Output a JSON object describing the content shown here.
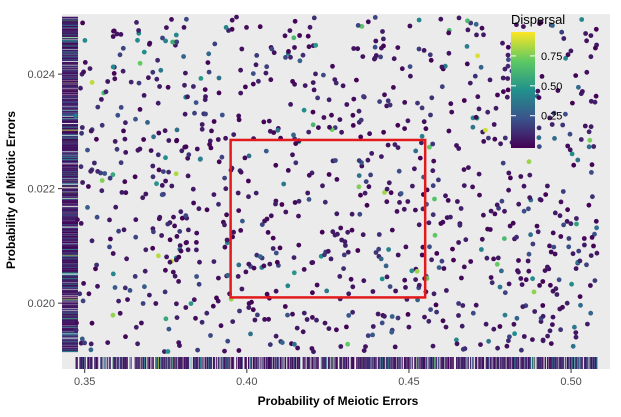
{
  "chart_data": {
    "type": "scatter",
    "title": "",
    "xlabel": "Probability of Meiotic Errors",
    "ylabel": "Probability of Mitotic Errors",
    "xlim": [
      0.343,
      0.512
    ],
    "ylim": [
      0.01885,
      0.02505
    ],
    "xticks": [
      0.35,
      0.4,
      0.45,
      0.5
    ],
    "xtick_labels": [
      "0.35",
      "0.40",
      "0.45",
      "0.50"
    ],
    "yticks": [
      0.02,
      0.022,
      0.024
    ],
    "ytick_labels": [
      "0.020",
      "0.022",
      "0.024"
    ],
    "grid": false,
    "panel_background": "#ebebeb",
    "color_variable": "Dispersal",
    "colorbar": {
      "title": "Dispersal",
      "placement": "top-right-inside",
      "breaks": [
        0.25,
        0.5,
        0.75
      ],
      "break_labels": [
        "0.25",
        "0.50",
        "0.75"
      ],
      "colors": [
        "#440154",
        "#3b528b",
        "#21918c",
        "#5ec962",
        "#fde725"
      ]
    },
    "highlight_box": {
      "x_range": [
        0.395,
        0.455
      ],
      "y_range": [
        0.0201,
        0.02285
      ],
      "color": "#e31a1c"
    },
    "rug": {
      "x_axis": true,
      "y_axis": true
    },
    "n_points": 1000,
    "generation": "random scatter (seeded) approximating the screenshot density; dispersal mostly low values 0-0.25 with few higher"
  }
}
